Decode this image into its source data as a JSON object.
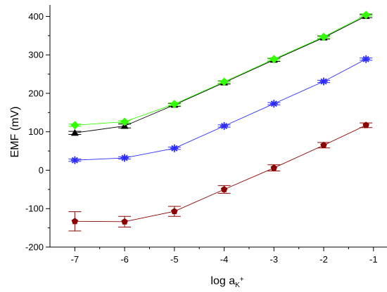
{
  "chart_data": {
    "type": "line",
    "title": "",
    "xlabel": {
      "main": "log a",
      "subscript": "K",
      "superscript": "+"
    },
    "ylabel": "EMF (mV)",
    "xlim": [
      -7.5,
      -0.7
    ],
    "ylim": [
      -200,
      430
    ],
    "x": [
      -7,
      -6,
      -5,
      -4,
      -3,
      -2,
      -1.15
    ],
    "xticks": [
      -7,
      -6,
      -5,
      -4,
      -3,
      -2,
      -1
    ],
    "yticks": [
      -200,
      -100,
      0,
      100,
      200,
      300,
      400
    ],
    "grid": false,
    "legend": "none",
    "series": [
      {
        "color": "#000000",
        "marker": "triangle",
        "values": [
          97,
          115,
          170,
          228,
          287,
          345,
          401
        ],
        "errors": [
          4,
          5,
          4,
          4,
          4,
          4,
          4
        ]
      },
      {
        "color": "#33ff00",
        "marker": "diamond",
        "values": [
          117,
          126,
          172,
          230,
          289,
          347,
          404
        ],
        "errors": [
          3,
          3,
          3,
          3,
          3,
          3,
          3
        ]
      },
      {
        "color": "#2a2aff",
        "marker": "star",
        "values": [
          26,
          32,
          57,
          115,
          173,
          231,
          289
        ],
        "errors": [
          3,
          3,
          3,
          3,
          3,
          3,
          3
        ]
      },
      {
        "color": "#8b0000",
        "marker": "pentagon",
        "values": [
          -133,
          -134,
          -107,
          -50,
          6,
          65,
          117
        ],
        "errors": [
          25,
          14,
          13,
          10,
          8,
          7,
          6
        ]
      }
    ]
  }
}
